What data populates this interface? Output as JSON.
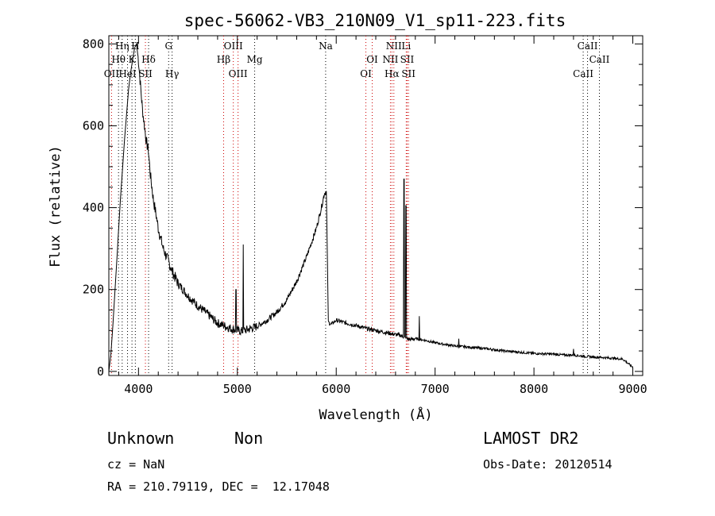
{
  "chart_data": {
    "type": "line",
    "title": "spec-56062-VB3_210N09_V1_sp11-223.fits",
    "xlabel": "Wavelength (Å)",
    "ylabel": "Flux (relative)",
    "xlim": [
      3700,
      9100
    ],
    "ylim": [
      -10,
      820
    ],
    "xticks": [
      4000,
      5000,
      6000,
      7000,
      8000,
      9000
    ],
    "yticks": [
      0,
      200,
      400,
      600,
      800
    ],
    "grid": false,
    "series": [
      {
        "color": "#000000",
        "points": [
          [
            3700,
            0
          ],
          [
            3720,
            40
          ],
          [
            3740,
            110
          ],
          [
            3760,
            190
          ],
          [
            3780,
            270
          ],
          [
            3800,
            350
          ],
          [
            3820,
            430
          ],
          [
            3840,
            500
          ],
          [
            3860,
            570
          ],
          [
            3880,
            630
          ],
          [
            3900,
            690
          ],
          [
            3920,
            730
          ],
          [
            3940,
            760
          ],
          [
            3960,
            790
          ],
          [
            3980,
            800
          ],
          [
            4000,
            760
          ],
          [
            4020,
            700
          ],
          [
            4040,
            640
          ],
          [
            4060,
            600
          ],
          [
            4080,
            560
          ],
          [
            4100,
            540
          ],
          [
            4120,
            480
          ],
          [
            4150,
            420
          ],
          [
            4180,
            380
          ],
          [
            4200,
            350
          ],
          [
            4250,
            300
          ],
          [
            4300,
            270
          ],
          [
            4350,
            240
          ],
          [
            4400,
            215
          ],
          [
            4500,
            185
          ],
          [
            4600,
            160
          ],
          [
            4700,
            140
          ],
          [
            4800,
            118
          ],
          [
            4900,
            108
          ],
          [
            5000,
            100
          ],
          [
            5050,
            98
          ],
          [
            5100,
            102
          ],
          [
            5200,
            110
          ],
          [
            5300,
            125
          ],
          [
            5400,
            145
          ],
          [
            5500,
            175
          ],
          [
            5600,
            220
          ],
          [
            5700,
            280
          ],
          [
            5800,
            350
          ],
          [
            5850,
            400
          ],
          [
            5880,
            435
          ],
          [
            5900,
            440
          ],
          [
            5920,
            120
          ],
          [
            5950,
            115
          ],
          [
            6000,
            125
          ],
          [
            6100,
            118
          ],
          [
            6200,
            112
          ],
          [
            6300,
            105
          ],
          [
            6400,
            100
          ],
          [
            6500,
            95
          ],
          [
            6600,
            90
          ],
          [
            6650,
            88
          ],
          [
            6680,
            85
          ],
          [
            6700,
            80
          ],
          [
            6750,
            78
          ],
          [
            6800,
            80
          ],
          [
            6900,
            76
          ],
          [
            7000,
            70
          ],
          [
            7100,
            66
          ],
          [
            7200,
            62
          ],
          [
            7300,
            60
          ],
          [
            7400,
            58
          ],
          [
            7500,
            56
          ],
          [
            7600,
            53
          ],
          [
            7700,
            50
          ],
          [
            7800,
            48
          ],
          [
            7900,
            46
          ],
          [
            8000,
            44
          ],
          [
            8100,
            43
          ],
          [
            8200,
            42
          ],
          [
            8300,
            40
          ],
          [
            8400,
            40
          ],
          [
            8500,
            37
          ],
          [
            8600,
            35
          ],
          [
            8700,
            34
          ],
          [
            8800,
            32
          ],
          [
            8900,
            30
          ],
          [
            9000,
            10
          ]
        ],
        "features": [
          {
            "x": 5060,
            "y": 310
          },
          {
            "x": 4985,
            "y": 200
          },
          {
            "x": 6685,
            "y": 470
          },
          {
            "x": 6705,
            "y": 405
          },
          {
            "x": 6840,
            "y": 135
          },
          {
            "x": 7240,
            "y": 80
          },
          {
            "x": 8400,
            "y": 55
          }
        ]
      }
    ],
    "line_markers": [
      {
        "label": "Hη",
        "x": 3835,
        "row": 0,
        "color": "#000000"
      },
      {
        "label": "H",
        "x": 3968,
        "row": 0,
        "color": "#000000"
      },
      {
        "label": "Hθ",
        "x": 3798,
        "row": 1,
        "color": "#000000"
      },
      {
        "label": "K",
        "x": 3934,
        "row": 1,
        "color": "#000000"
      },
      {
        "label": "Hδ",
        "x": 4102,
        "row": 1,
        "color": "#000000"
      },
      {
        "label": "OII",
        "x": 3727,
        "row": 2,
        "color": "#000000"
      },
      {
        "label": "HeI",
        "x": 3889,
        "row": 2,
        "color": "#000000"
      },
      {
        "label": "SII",
        "x": 4070,
        "row": 2,
        "color": "#000000"
      },
      {
        "label": "G",
        "x": 4305,
        "row": 0,
        "color": "#000000"
      },
      {
        "label": "Hγ",
        "x": 4340,
        "row": 2,
        "color": "#000000"
      },
      {
        "label": "OIII",
        "x": 4959,
        "row": 0,
        "color": "#000000"
      },
      {
        "label": "Hβ",
        "x": 4861,
        "row": 1,
        "color": "#000000"
      },
      {
        "label": "Mg",
        "x": 5175,
        "row": 1,
        "color": "#000000"
      },
      {
        "label": "OIII",
        "x": 5007,
        "row": 2,
        "color": "#000000"
      },
      {
        "label": "Na",
        "x": 5893,
        "row": 0,
        "color": "#000000"
      },
      {
        "label": "OI",
        "x": 6364,
        "row": 1,
        "color": "#000000"
      },
      {
        "label": "OI",
        "x": 6300,
        "row": 2,
        "color": "#000000"
      },
      {
        "label": "NII",
        "x": 6583,
        "row": 0,
        "color": "#000000"
      },
      {
        "label": "Li",
        "x": 6708,
        "row": 0,
        "color": "#000000"
      },
      {
        "label": "NII",
        "x": 6548,
        "row": 1,
        "color": "#000000"
      },
      {
        "label": "SII",
        "x": 6717,
        "row": 1,
        "color": "#000000"
      },
      {
        "label": "Hα",
        "x": 6563,
        "row": 2,
        "color": "#000000"
      },
      {
        "label": "SII",
        "x": 6731,
        "row": 2,
        "color": "#000000"
      },
      {
        "label": "CaII",
        "x": 8542,
        "row": 0,
        "color": "#000000"
      },
      {
        "label": "CaII",
        "x": 8662,
        "row": 1,
        "color": "#000000"
      },
      {
        "label": "CaII",
        "x": 8498,
        "row": 2,
        "color": "#000000"
      }
    ],
    "line_colors": {
      "emission": "#cc0000",
      "absorption": "#000000"
    }
  },
  "info": {
    "class": "Unknown",
    "subclass": "Non",
    "survey": "LAMOST DR2",
    "cz": "cz = NaN",
    "obsdate": "Obs-Date: 20120514",
    "coords": "RA = 210.79119, DEC =  12.17048"
  }
}
